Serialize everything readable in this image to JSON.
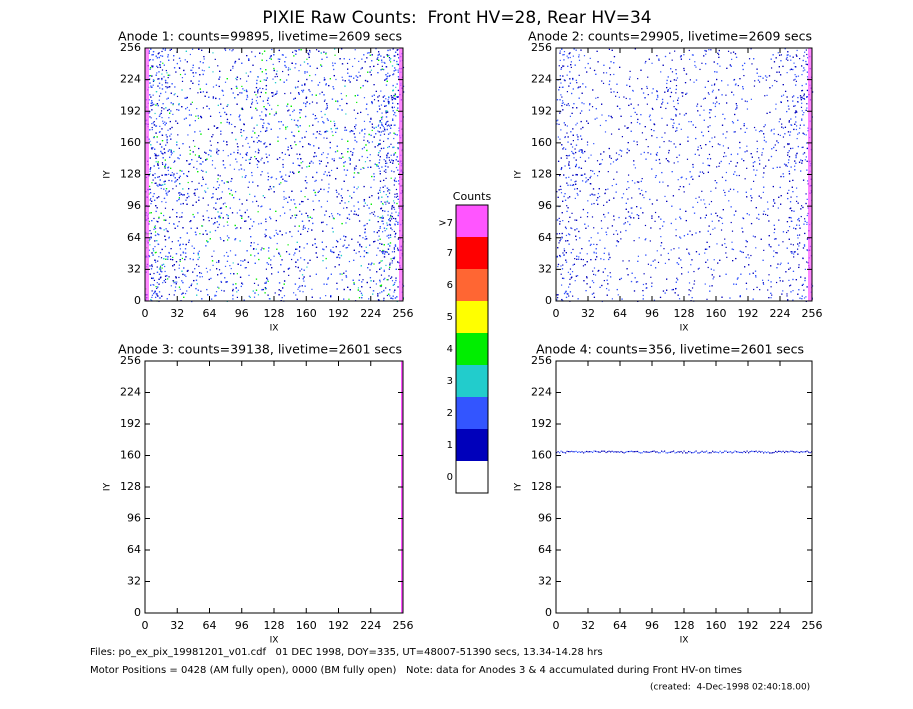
{
  "title": "PIXIE Raw Counts:  Front HV=28, Rear HV=34",
  "chart_data": [
    {
      "type": "heatmap",
      "title": "Anode 1: counts=99895, livetime=2609 secs",
      "xlabel": "IX",
      "ylabel": "IY",
      "xlim": [
        0,
        256
      ],
      "ylim": [
        0,
        256
      ],
      "xticks": [
        0,
        32,
        64,
        96,
        128,
        160,
        192,
        224,
        256
      ],
      "yticks": [
        0,
        32,
        64,
        96,
        128,
        160,
        192,
        224,
        256
      ]
    },
    {
      "type": "heatmap",
      "title": "Anode 2: counts=29905, livetime=2609 secs",
      "xlabel": "IX",
      "ylabel": "IY",
      "xlim": [
        0,
        256
      ],
      "ylim": [
        0,
        256
      ],
      "xticks": [
        0,
        32,
        64,
        96,
        128,
        160,
        192,
        224,
        256
      ],
      "yticks": [
        0,
        32,
        64,
        96,
        128,
        160,
        192,
        224,
        256
      ]
    },
    {
      "type": "heatmap",
      "title": "Anode 3: counts=39138, livetime=2601 secs",
      "xlabel": "IX",
      "ylabel": "IY",
      "xlim": [
        0,
        256
      ],
      "ylim": [
        0,
        256
      ],
      "xticks": [
        0,
        32,
        64,
        96,
        128,
        160,
        192,
        224,
        256
      ],
      "yticks": [
        0,
        32,
        64,
        96,
        128,
        160,
        192,
        224,
        256
      ]
    },
    {
      "type": "heatmap",
      "title": "Anode 4: counts=356, livetime=2601 secs",
      "xlabel": "IX",
      "ylabel": "IY",
      "xlim": [
        0,
        256
      ],
      "ylim": [
        0,
        256
      ],
      "xticks": [
        0,
        32,
        64,
        96,
        128,
        160,
        192,
        224,
        256
      ],
      "yticks": [
        0,
        32,
        64,
        96,
        128,
        160,
        192,
        224,
        256
      ]
    }
  ],
  "colorbar": {
    "title": "Counts",
    "labels": [
      ">7",
      "7",
      "6",
      "5",
      "4",
      "3",
      "2",
      "1",
      "0"
    ],
    "colors": [
      "#ff55ff",
      "#ff0000",
      "#ff6633",
      "#ffff00",
      "#00ee00",
      "#22cccc",
      "#3355ff",
      "#0000bb",
      "#ffffff"
    ]
  },
  "footer": [
    "Files: po_ex_pix_19981201_v01.cdf   01 DEC 1998, DOY=335, UT=48007-51390 secs, 13.34-14.28 hrs",
    "Motor Positions = 0428 (AM fully open), 0000 (BM fully open)   Note: data for Anodes 3 & 4 accumulated during Front HV-on times",
    "(created:  4-Dec-1998 02:40:18.00)"
  ]
}
